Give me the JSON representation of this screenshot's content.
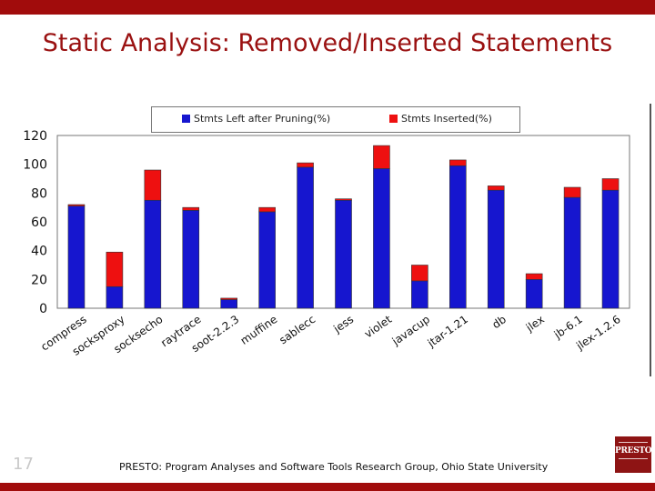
{
  "slide": {
    "title": "Static Analysis: Removed/Inserted Statements",
    "page_number": "17",
    "footer": "PRESTO: Program Analyses and Software Tools Research Group, Ohio State University",
    "logo_text": "PRESTO"
  },
  "colors": {
    "accent": "#a10c0c",
    "title": "#9a1111",
    "series_left": "#1616cf",
    "series_inserted": "#ee1010"
  },
  "chart_data": {
    "type": "bar",
    "stacked": true,
    "categories": [
      "compress",
      "socksproxy",
      "socksecho",
      "raytrace",
      "soot-2.2.3",
      "muffine",
      "sablecc",
      "jess",
      "violet",
      "javacup",
      "jtar-1.21",
      "db",
      "jlex",
      "jb-6.1",
      "jlex-1.2.6"
    ],
    "series": [
      {
        "name": "Stmts Left after Pruning(%)",
        "values": [
          71,
          15,
          75,
          68,
          6,
          67,
          98,
          75,
          97,
          19,
          99,
          82,
          20,
          77,
          82
        ]
      },
      {
        "name": "Stmts Inserted(%)",
        "values": [
          1,
          24,
          21,
          2,
          1,
          3,
          3,
          1,
          16,
          11,
          4,
          3,
          4,
          7,
          8
        ]
      }
    ],
    "ylim": [
      0,
      120
    ],
    "yticks": [
      "0",
      "20",
      "40",
      "60",
      "80",
      "100",
      "120"
    ],
    "grid": false,
    "legend_position": "top"
  }
}
